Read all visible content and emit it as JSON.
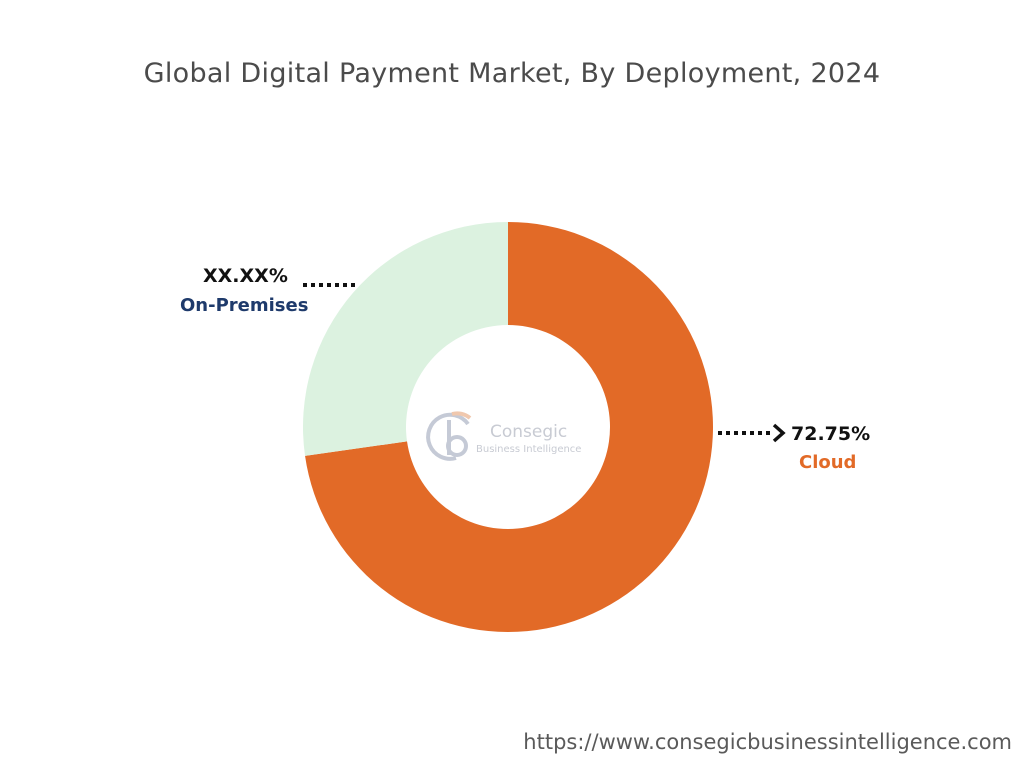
{
  "title": "Global Digital Payment Market, By Deployment, 2024",
  "watermark": {
    "line1": "Consegic",
    "line2": "Business Intelligence"
  },
  "source_url": "https://www.consegicbusinessintelligence.com",
  "colors": {
    "cloud": "#e26a27",
    "on_premises": "#dcf2e0",
    "on_premises_label": "#1e3a6b",
    "cloud_label": "#e26a27"
  },
  "chart_data": {
    "type": "pie",
    "donut": true,
    "title": "Global Digital Payment Market, By Deployment, 2024",
    "slices": [
      {
        "name": "Cloud",
        "value": 72.75,
        "value_label": "72.75%",
        "color": "#e26a27"
      },
      {
        "name": "On-Premises",
        "value": 27.25,
        "value_label": "XX.XX%",
        "color": "#dcf2e0"
      }
    ]
  }
}
